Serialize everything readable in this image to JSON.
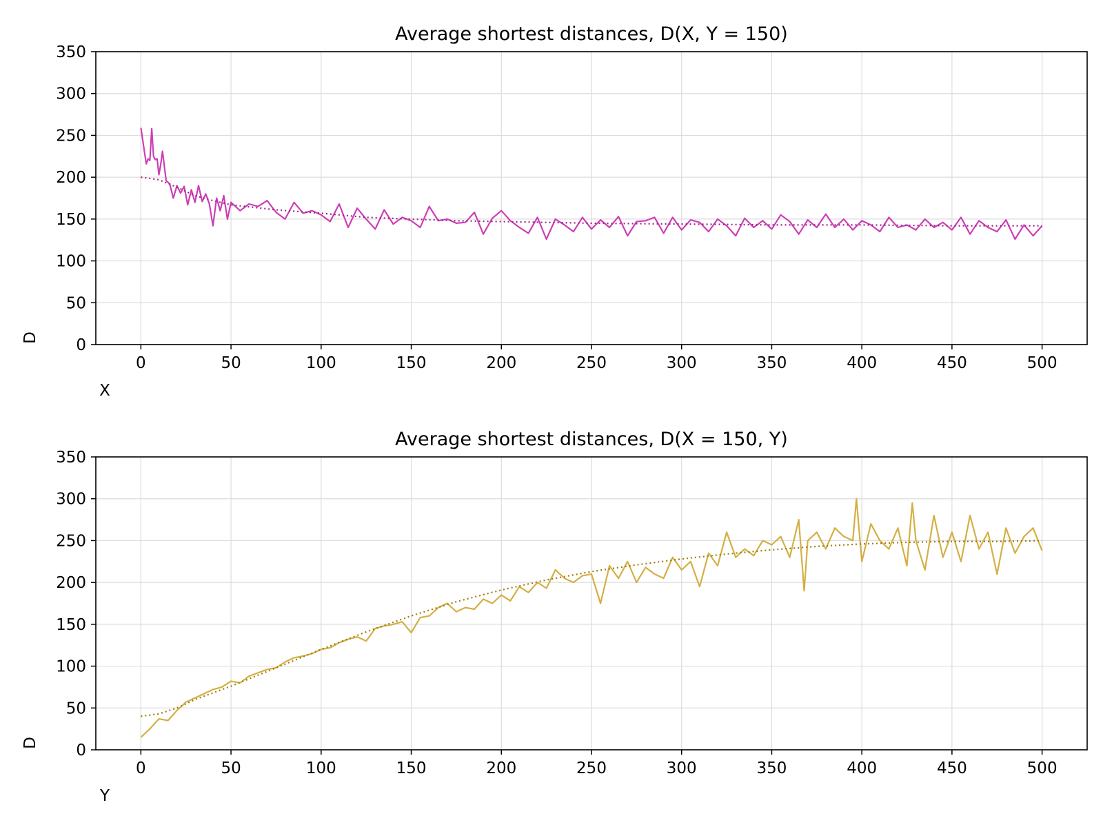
{
  "chart_data": [
    {
      "type": "line",
      "title": "Average shortest distances, D(X, Y = 150)",
      "xlabel": "X",
      "ylabel": "D",
      "xlim": [
        -25,
        525
      ],
      "ylim": [
        0,
        350
      ],
      "xticks": [
        0,
        50,
        100,
        150,
        200,
        250,
        300,
        350,
        400,
        450,
        500
      ],
      "yticks": [
        0,
        50,
        100,
        150,
        200,
        250,
        300,
        350
      ],
      "grid": true,
      "series": [
        {
          "style": "solid",
          "color": "#cc3fb4",
          "x": [
            0,
            2,
            3,
            4,
            5,
            6,
            7,
            8,
            9,
            10,
            11,
            12,
            14,
            16,
            18,
            20,
            22,
            24,
            26,
            28,
            30,
            32,
            34,
            36,
            38,
            40,
            42,
            44,
            46,
            48,
            50,
            55,
            60,
            65,
            70,
            75,
            80,
            85,
            90,
            95,
            100,
            105,
            110,
            115,
            120,
            125,
            130,
            135,
            140,
            145,
            150,
            155,
            160,
            165,
            170,
            175,
            180,
            185,
            190,
            195,
            200,
            205,
            210,
            215,
            220,
            225,
            230,
            235,
            240,
            245,
            250,
            255,
            260,
            265,
            270,
            275,
            280,
            285,
            290,
            295,
            300,
            305,
            310,
            315,
            320,
            325,
            330,
            335,
            340,
            345,
            350,
            355,
            360,
            365,
            370,
            375,
            380,
            385,
            390,
            395,
            400,
            405,
            410,
            415,
            420,
            425,
            430,
            435,
            440,
            445,
            450,
            455,
            460,
            465,
            470,
            475,
            480,
            485,
            490,
            495,
            500
          ],
          "y": [
            259,
            230,
            216,
            222,
            220,
            258,
            225,
            221,
            222,
            203,
            215,
            231,
            196,
            192,
            175,
            190,
            181,
            189,
            167,
            185,
            170,
            190,
            171,
            180,
            168,
            142,
            175,
            160,
            178,
            150,
            170,
            160,
            168,
            165,
            172,
            158,
            150,
            170,
            157,
            160,
            155,
            147,
            168,
            140,
            163,
            150,
            138,
            161,
            144,
            152,
            148,
            140,
            165,
            148,
            150,
            145,
            146,
            158,
            132,
            151,
            160,
            148,
            140,
            133,
            152,
            126,
            150,
            143,
            135,
            152,
            138,
            149,
            140,
            153,
            130,
            147,
            148,
            152,
            133,
            152,
            137,
            149,
            146,
            135,
            150,
            142,
            130,
            151,
            140,
            148,
            138,
            155,
            147,
            132,
            149,
            140,
            156,
            140,
            150,
            137,
            148,
            143,
            135,
            152,
            140,
            143,
            137,
            150,
            140,
            146,
            137,
            152,
            132,
            148,
            140,
            135,
            149,
            126,
            143,
            130,
            142
          ]
        },
        {
          "style": "dotted",
          "color": "#a0208e",
          "x": [
            0,
            10,
            20,
            30,
            40,
            50,
            75,
            100,
            125,
            150,
            175,
            200,
            250,
            300,
            350,
            400,
            450,
            500
          ],
          "y": [
            200,
            197,
            188,
            178,
            172,
            167,
            161,
            157,
            152,
            150,
            148,
            147,
            145,
            144,
            143,
            143,
            142,
            142
          ]
        }
      ]
    },
    {
      "type": "line",
      "title": "Average shortest distances, D(X = 150, Y)",
      "xlabel": "Y",
      "ylabel": "D",
      "xlim": [
        -25,
        525
      ],
      "ylim": [
        0,
        350
      ],
      "xticks": [
        0,
        50,
        100,
        150,
        200,
        250,
        300,
        350,
        400,
        450,
        500
      ],
      "yticks": [
        0,
        50,
        100,
        150,
        200,
        250,
        300,
        350
      ],
      "grid": true,
      "series": [
        {
          "style": "solid",
          "color": "#d4af44",
          "x": [
            0,
            5,
            10,
            15,
            20,
            25,
            30,
            35,
            40,
            45,
            50,
            55,
            60,
            65,
            70,
            75,
            80,
            85,
            90,
            95,
            100,
            105,
            110,
            115,
            120,
            125,
            130,
            135,
            140,
            145,
            150,
            155,
            160,
            165,
            170,
            175,
            180,
            185,
            190,
            195,
            200,
            205,
            210,
            215,
            220,
            225,
            230,
            235,
            240,
            245,
            250,
            255,
            260,
            265,
            270,
            275,
            280,
            285,
            290,
            295,
            300,
            305,
            310,
            315,
            320,
            325,
            330,
            335,
            340,
            345,
            350,
            355,
            360,
            365,
            368,
            370,
            375,
            380,
            385,
            390,
            395,
            397,
            400,
            405,
            410,
            415,
            420,
            425,
            428,
            430,
            435,
            440,
            445,
            450,
            455,
            460,
            465,
            470,
            475,
            480,
            485,
            490,
            495,
            500
          ],
          "y": [
            15,
            25,
            37,
            35,
            47,
            57,
            62,
            67,
            72,
            75,
            82,
            80,
            88,
            92,
            96,
            98,
            105,
            110,
            112,
            115,
            120,
            122,
            128,
            132,
            135,
            130,
            145,
            148,
            150,
            153,
            140,
            158,
            160,
            170,
            175,
            165,
            170,
            168,
            180,
            175,
            185,
            178,
            195,
            188,
            200,
            193,
            215,
            205,
            200,
            208,
            210,
            175,
            220,
            205,
            225,
            200,
            218,
            210,
            205,
            230,
            215,
            225,
            195,
            235,
            220,
            260,
            230,
            240,
            232,
            250,
            245,
            255,
            230,
            275,
            190,
            250,
            260,
            240,
            265,
            255,
            250,
            300,
            225,
            270,
            250,
            240,
            265,
            220,
            295,
            250,
            215,
            280,
            230,
            260,
            225,
            280,
            240,
            260,
            210,
            265,
            235,
            255,
            265,
            238
          ]
        },
        {
          "style": "dotted",
          "color": "#9a7d00",
          "x": [
            0,
            10,
            20,
            30,
            40,
            50,
            75,
            100,
            125,
            150,
            175,
            200,
            225,
            250,
            275,
            300,
            325,
            350,
            375,
            400,
            425,
            450,
            475,
            500
          ],
          "y": [
            40,
            43,
            50,
            60,
            68,
            76,
            98,
            120,
            141,
            160,
            177,
            191,
            203,
            213,
            221,
            228,
            234,
            239,
            243,
            246,
            248,
            249,
            249,
            250
          ]
        }
      ]
    }
  ]
}
